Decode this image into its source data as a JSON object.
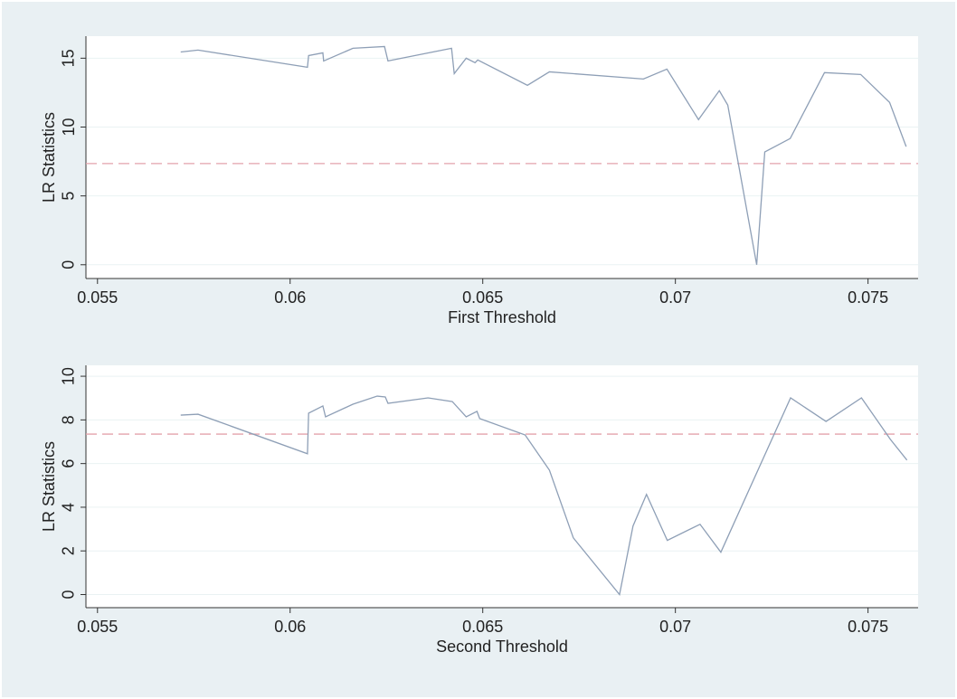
{
  "chart_data": [
    {
      "type": "line",
      "x_label": "First Threshold",
      "y_label": "LR Statistics",
      "x": [
        0.05716,
        0.05761,
        0.06045,
        0.06048,
        0.06085,
        0.06087,
        0.06163,
        0.06245,
        0.06254,
        0.06419,
        0.06426,
        0.06457,
        0.0648,
        0.06487,
        0.06616,
        0.06673,
        0.06917,
        0.06978,
        0.0706,
        0.07114,
        0.07136,
        0.07211,
        0.07232,
        0.07298,
        0.07387,
        0.07481,
        0.07556,
        0.07599
      ],
      "values": [
        15.45,
        15.59,
        14.34,
        15.19,
        15.39,
        14.8,
        15.72,
        15.85,
        14.8,
        15.72,
        13.88,
        15.0,
        14.67,
        14.87,
        13.03,
        14.01,
        13.49,
        14.21,
        10.54,
        12.64,
        11.59,
        0,
        8.19,
        9.17,
        13.95,
        13.82,
        11.79,
        8.58
      ],
      "color": "#8e9fb6",
      "reference_line": {
        "value": 7.35,
        "color": "#e3a2ab"
      },
      "xlim": [
        0.0547,
        0.0763
      ],
      "xticks": [
        0.055,
        0.06,
        0.065,
        0.07,
        0.075
      ],
      "ylim": [
        -1,
        16.6
      ],
      "yticks": [
        0,
        5,
        10,
        15
      ],
      "grid": true
    },
    {
      "type": "line",
      "x_label": "Second Threshold",
      "y_label": "LR Statistics",
      "x": [
        0.05716,
        0.05761,
        0.06045,
        0.06048,
        0.06085,
        0.06092,
        0.06163,
        0.06226,
        0.06247,
        0.06254,
        0.06358,
        0.06421,
        0.06457,
        0.06485,
        0.06492,
        0.0661,
        0.06673,
        0.06735,
        0.06855,
        0.0689,
        0.06925,
        0.06979,
        0.07064,
        0.07118,
        0.07299,
        0.07391,
        0.07483,
        0.07558,
        0.07601
      ],
      "values": [
        8.22,
        8.26,
        6.45,
        8.31,
        8.64,
        8.14,
        8.72,
        9.09,
        9.05,
        8.76,
        9.01,
        8.84,
        8.14,
        8.39,
        8.06,
        7.31,
        5.7,
        2.6,
        0,
        3.14,
        4.59,
        2.48,
        3.22,
        1.94,
        9.01,
        7.93,
        9.01,
        7.11,
        6.16
      ],
      "color": "#8e9fb6",
      "reference_line": {
        "value": 7.35,
        "color": "#e3a2ab"
      },
      "xlim": [
        0.0547,
        0.0763
      ],
      "xticks": [
        0.055,
        0.06,
        0.065,
        0.07,
        0.075
      ],
      "ylim": [
        -0.6,
        10.5
      ],
      "yticks": [
        0,
        2,
        4,
        6,
        8,
        10
      ],
      "grid": true
    }
  ]
}
